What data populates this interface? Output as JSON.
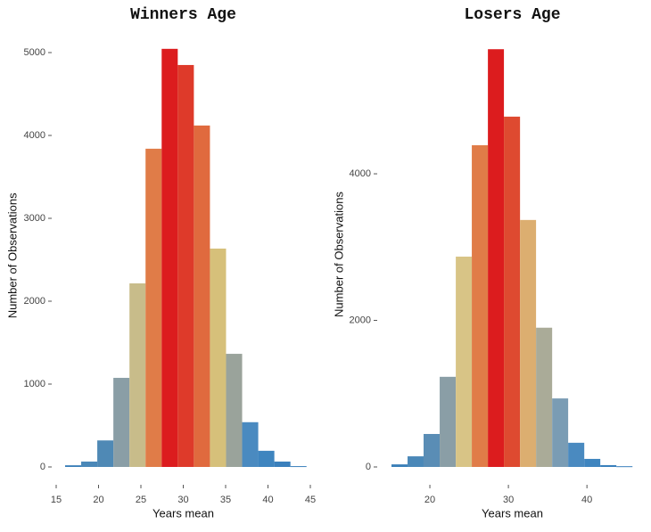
{
  "chart_data": [
    {
      "type": "histogram",
      "title": "Winners Age",
      "xlabel": "Years mean",
      "ylabel": "Number of Observations",
      "bins": [
        16.05,
        17.95,
        19.85,
        21.75,
        23.65,
        25.55,
        27.45,
        29.35,
        31.25,
        33.15,
        35.05,
        36.95,
        38.85,
        40.75,
        42.65,
        44.55
      ],
      "counts": [
        20,
        65,
        320,
        1075,
        2215,
        3840,
        5045,
        4850,
        4120,
        2635,
        1365,
        540,
        195,
        65,
        10
      ],
      "colors": [
        "#3a7fb8",
        "#4a88b8",
        "#4f89b5",
        "#8a9ea6",
        "#c8bc8a",
        "#e07c48",
        "#dc1c1e",
        "#de3a2a",
        "#e06a3e",
        "#d6c07a",
        "#9aa39b",
        "#4a8ac0",
        "#3f85bf",
        "#3a80bc",
        "#3a80bc"
      ],
      "xlim": [
        15,
        45
      ],
      "xticks": [
        15,
        20,
        25,
        30,
        35,
        40,
        45
      ],
      "ylim": [
        0,
        5100
      ],
      "yticks": [
        0,
        1000,
        2000,
        3000,
        4000,
        5000
      ]
    },
    {
      "type": "histogram",
      "title": "Losers Age",
      "xlabel": "Years mean",
      "ylabel": "Number of Observations",
      "bins": [
        15.11,
        17.16,
        19.2,
        21.25,
        23.3,
        25.34,
        27.39,
        29.43,
        31.48,
        33.52,
        35.57,
        37.61,
        39.66,
        41.7,
        43.75,
        45.8
      ],
      "counts": [
        35,
        145,
        450,
        1230,
        2870,
        4390,
        5700,
        4780,
        3370,
        1900,
        935,
        330,
        110,
        25,
        10
      ],
      "colors": [
        "#3a7fb8",
        "#4a88b8",
        "#5a8db5",
        "#8a9ea6",
        "#d8c486",
        "#e07c48",
        "#dc1c1e",
        "#de4a30",
        "#dcae70",
        "#aaab98",
        "#7a9cb4",
        "#4a8ac0",
        "#3f85bf",
        "#3a80bc",
        "#3a80bc"
      ],
      "xlim": [
        15,
        46
      ],
      "xticks": [
        20,
        30,
        40
      ],
      "ylim": [
        0,
        5800
      ],
      "yticks": [
        0,
        2000,
        4000
      ]
    }
  ]
}
